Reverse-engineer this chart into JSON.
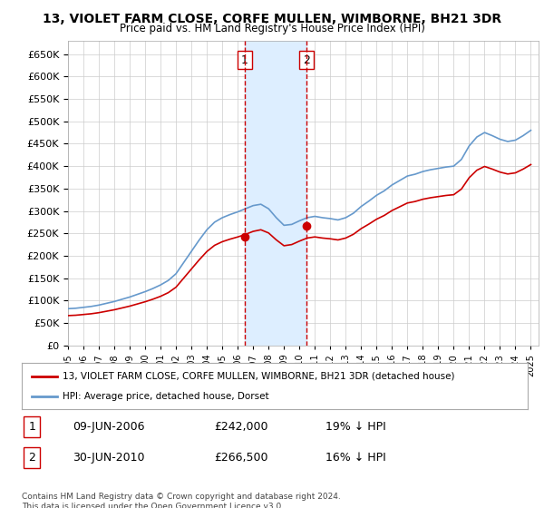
{
  "title": "13, VIOLET FARM CLOSE, CORFE MULLEN, WIMBORNE, BH21 3DR",
  "subtitle": "Price paid vs. HM Land Registry's House Price Index (HPI)",
  "legend_line1": "13, VIOLET FARM CLOSE, CORFE MULLEN, WIMBORNE, BH21 3DR (detached house)",
  "legend_line2": "HPI: Average price, detached house, Dorset",
  "sale1_date": "09-JUN-2006",
  "sale1_price": 242000,
  "sale1_label": "19% ↓ HPI",
  "sale2_date": "30-JUN-2010",
  "sale2_price": 266500,
  "sale2_label": "16% ↓ HPI",
  "footer": "Contains HM Land Registry data © Crown copyright and database right 2024.\nThis data is licensed under the Open Government Licence v3.0.",
  "ylim": [
    0,
    680000
  ],
  "yticks": [
    0,
    50000,
    100000,
    150000,
    200000,
    250000,
    300000,
    350000,
    400000,
    450000,
    500000,
    550000,
    600000,
    650000
  ],
  "hpi_color": "#6699cc",
  "sale_color": "#cc0000",
  "shading_color": "#ddeeff",
  "vline_color": "#cc0000",
  "marker_color": "#cc0000"
}
